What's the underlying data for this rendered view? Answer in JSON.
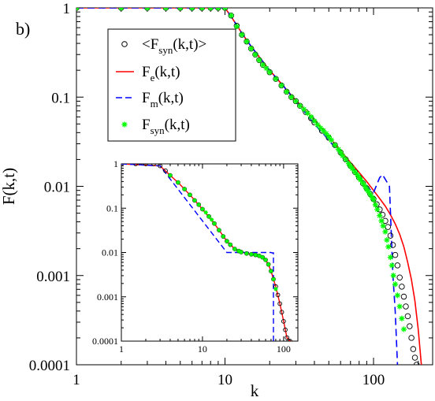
{
  "panel_label": "b)",
  "chart_data": [
    {
      "type": "line",
      "xscale": "log",
      "yscale": "log",
      "xlim": [
        1,
        250
      ],
      "ylim": [
        0.0001,
        1
      ],
      "xlabel": "k",
      "ylabel": "F(k,t)",
      "x_ticks": [
        {
          "value": 1,
          "label": "1"
        },
        {
          "value": 10,
          "label": "10"
        },
        {
          "value": 100,
          "label": "100"
        }
      ],
      "y_ticks": [
        {
          "value": 1,
          "label": "1"
        },
        {
          "value": 0.1,
          "label": "0.1"
        },
        {
          "value": 0.01,
          "label": "0.01"
        },
        {
          "value": 0.001,
          "label": "0.001"
        },
        {
          "value": 0.0001,
          "label": "0.0001"
        }
      ],
      "legend": {
        "placement": "upper-left",
        "entries": [
          {
            "main": "<F",
            "sub": "syn",
            "rest": "(k,t)>",
            "marker": "open-circle",
            "color": "#000000"
          },
          {
            "main": "F",
            "sub": "e",
            "rest": "(k,t)",
            "marker": "solid-line",
            "color": "#ff0000"
          },
          {
            "main": "F",
            "sub": "m",
            "rest": "(k,t)",
            "marker": "dashed-line",
            "color": "#0000ff"
          },
          {
            "main": "F",
            "sub": "syn",
            "rest": "(k,t)",
            "marker": "star",
            "color": "#00ff00"
          }
        ]
      },
      "series": [
        {
          "name": "<Fsyn(k,t)>",
          "style": "open-circle",
          "color": "#000000",
          "x": [
            1,
            2,
            3,
            4,
            5,
            6,
            7,
            8,
            9,
            10,
            11,
            12,
            13,
            14,
            15,
            16,
            17,
            18,
            20,
            22,
            24,
            26,
            28,
            30,
            32,
            35,
            38,
            40,
            45,
            50,
            55,
            60,
            65,
            70,
            75,
            80,
            85,
            90,
            95,
            100,
            105,
            110,
            115,
            120,
            125,
            130,
            135,
            140,
            145,
            150,
            155,
            160,
            165,
            170,
            175,
            180,
            185,
            190,
            195
          ],
          "y": [
            1,
            1,
            1,
            1,
            1,
            1,
            1,
            1,
            1,
            1,
            0.82,
            0.63,
            0.5,
            0.42,
            0.35,
            0.3,
            0.26,
            0.23,
            0.19,
            0.16,
            0.135,
            0.115,
            0.1,
            0.09,
            0.08,
            0.068,
            0.058,
            0.052,
            0.042,
            0.035,
            0.029,
            0.024,
            0.02,
            0.017,
            0.0145,
            0.0125,
            0.0108,
            0.0095,
            0.0082,
            0.0072,
            0.0063,
            0.0055,
            0.0048,
            0.0041,
            0.0035,
            0.0028,
            0.0022,
            0.0017,
            0.0013,
            0.00095,
            0.00075,
            0.00058,
            0.00045,
            0.00035,
            0.00027,
            0.0002,
            0.00015,
            0.00012,
            0.0001
          ]
        },
        {
          "name": "Fe(k,t)",
          "style": "solid",
          "color": "#ff0000",
          "x": [
            1,
            10,
            11,
            13,
            15,
            18,
            20,
            25,
            30,
            35,
            40,
            50,
            60,
            70,
            80,
            90,
            100,
            110,
            120,
            130,
            140,
            150,
            160,
            170,
            180,
            190,
            200,
            210
          ],
          "y": [
            1,
            1,
            0.8,
            0.52,
            0.37,
            0.25,
            0.2,
            0.13,
            0.092,
            0.07,
            0.055,
            0.036,
            0.025,
            0.0185,
            0.0143,
            0.0113,
            0.009,
            0.0073,
            0.006,
            0.0048,
            0.0038,
            0.0029,
            0.0021,
            0.0014,
            0.0009,
            0.00052,
            0.00025,
            0.0001
          ]
        },
        {
          "name": "Fm(k,t)",
          "style": "dashed",
          "color": "#0000ff",
          "x": [
            1,
            10,
            11,
            13,
            15,
            18,
            20,
            25,
            30,
            40,
            50,
            60,
            70,
            80,
            90,
            100,
            110,
            115,
            120,
            128,
            135,
            140,
            145
          ],
          "y": [
            1,
            1,
            0.8,
            0.52,
            0.37,
            0.25,
            0.2,
            0.13,
            0.09,
            0.05,
            0.033,
            0.023,
            0.017,
            0.013,
            0.01,
            0.0085,
            0.0125,
            0.0135,
            0.012,
            0.01,
            0.001,
            0.0004,
            0.0001
          ]
        },
        {
          "name": "Fsyn(k,t)",
          "style": "star",
          "color": "#00ff00",
          "x": [
            1,
            2,
            3,
            4,
            5,
            6,
            7,
            8,
            9,
            10,
            11,
            12,
            13,
            14,
            15,
            16,
            17,
            18,
            19,
            20,
            22,
            24,
            26,
            28,
            30,
            32,
            34,
            36,
            38,
            40,
            42,
            44,
            46,
            48,
            50,
            52,
            55,
            58,
            60,
            62,
            65,
            68,
            70,
            72,
            75,
            78,
            80,
            82,
            85,
            88,
            90,
            92,
            95,
            98,
            100,
            103,
            106,
            110,
            113,
            116,
            120,
            123,
            126,
            130,
            133,
            136,
            140,
            145,
            150,
            155,
            160
          ],
          "y": [
            1,
            1,
            1,
            1,
            1,
            1,
            1,
            1,
            1,
            1,
            0.82,
            0.62,
            0.5,
            0.42,
            0.35,
            0.3,
            0.26,
            0.23,
            0.21,
            0.19,
            0.16,
            0.135,
            0.115,
            0.1,
            0.09,
            0.08,
            0.073,
            0.066,
            0.06,
            0.054,
            0.049,
            0.045,
            0.042,
            0.039,
            0.036,
            0.033,
            0.029,
            0.026,
            0.024,
            0.022,
            0.02,
            0.018,
            0.0168,
            0.0158,
            0.0145,
            0.0134,
            0.0125,
            0.0118,
            0.0108,
            0.0099,
            0.0093,
            0.0088,
            0.0081,
            0.0075,
            0.0071,
            0.0062,
            0.0055,
            0.0047,
            0.0041,
            0.0036,
            0.0031,
            0.0025,
            0.0021,
            0.0016,
            0.0013,
            0.001,
            0.0008,
            0.0006,
            0.00045,
            0.00033,
            0.00025
          ]
        }
      ]
    },
    {
      "type": "line",
      "role": "inset",
      "xscale": "log",
      "yscale": "log",
      "xlim": [
        1,
        150
      ],
      "ylim": [
        0.0001,
        1
      ],
      "x_ticks": [
        {
          "value": 1,
          "label": "1"
        },
        {
          "value": 10,
          "label": "10"
        },
        {
          "value": 100,
          "label": "100"
        }
      ],
      "y_ticks": [
        {
          "value": 1,
          "label": "1"
        },
        {
          "value": 0.1,
          "label": "0.1"
        },
        {
          "value": 0.01,
          "label": "0.01"
        },
        {
          "value": 0.001,
          "label": "0.001"
        },
        {
          "value": 0.0001,
          "label": "0.0001"
        }
      ],
      "series": [
        {
          "name": "<Fsyn(k,t)>",
          "style": "open-circle",
          "color": "#000000",
          "x": [
            1,
            1.5,
            2,
            2.5,
            3,
            3.5,
            4,
            5,
            6,
            7,
            8,
            9,
            10,
            12,
            14,
            16,
            18,
            20,
            22,
            25,
            28,
            30,
            35,
            40,
            45,
            50,
            55,
            60,
            65,
            70,
            75,
            80,
            85,
            90,
            95,
            100,
            105,
            110,
            115,
            120
          ],
          "y": [
            1,
            1,
            1,
            1,
            0.9,
            0.7,
            0.55,
            0.38,
            0.27,
            0.2,
            0.15,
            0.12,
            0.095,
            0.065,
            0.045,
            0.032,
            0.023,
            0.018,
            0.015,
            0.012,
            0.0108,
            0.0102,
            0.0095,
            0.0091,
            0.0088,
            0.0084,
            0.0078,
            0.0068,
            0.0054,
            0.0038,
            0.0025,
            0.0017,
            0.0011,
            0.0007,
            0.00045,
            0.00028,
            0.00018,
            0.00012,
            0.0001,
            0.0001
          ]
        },
        {
          "name": "Fe(k,t)",
          "style": "solid",
          "color": "#ff0000",
          "x": [
            1,
            3,
            4,
            5,
            7,
            10,
            14,
            20,
            25,
            30,
            40,
            50,
            55,
            60,
            65,
            70,
            80,
            90,
            100,
            110,
            120,
            125
          ],
          "y": [
            1,
            0.9,
            0.55,
            0.38,
            0.2,
            0.095,
            0.045,
            0.018,
            0.012,
            0.0102,
            0.0091,
            0.0084,
            0.0078,
            0.0068,
            0.0054,
            0.0038,
            0.0017,
            0.0007,
            0.00028,
            0.00012,
            0.0001,
            0.0001
          ]
        },
        {
          "name": "Fm(k,t)",
          "style": "dashed",
          "color": "#0000ff",
          "x": [
            1,
            3,
            20,
            40,
            60,
            70,
            72,
            75,
            75
          ],
          "y": [
            1,
            0.9,
            0.01,
            0.01,
            0.01,
            0.01,
            0.0098,
            0.0098,
            0.0001
          ]
        },
        {
          "name": "Fsyn(k,t)",
          "style": "star",
          "color": "#00ff00",
          "x": [
            4,
            5,
            6,
            7,
            8,
            9,
            10,
            11,
            12,
            13,
            14,
            16,
            18,
            20,
            22,
            25,
            28,
            30,
            35,
            40,
            45,
            50,
            55,
            60,
            65,
            70,
            75,
            80
          ],
          "y": [
            0.55,
            0.38,
            0.27,
            0.2,
            0.15,
            0.12,
            0.095,
            0.08,
            0.065,
            0.055,
            0.045,
            0.032,
            0.023,
            0.018,
            0.015,
            0.012,
            0.0108,
            0.0102,
            0.0095,
            0.0091,
            0.0088,
            0.0084,
            0.0078,
            0.0068,
            0.0054,
            0.0038,
            0.0025,
            0.0015
          ]
        }
      ]
    }
  ]
}
